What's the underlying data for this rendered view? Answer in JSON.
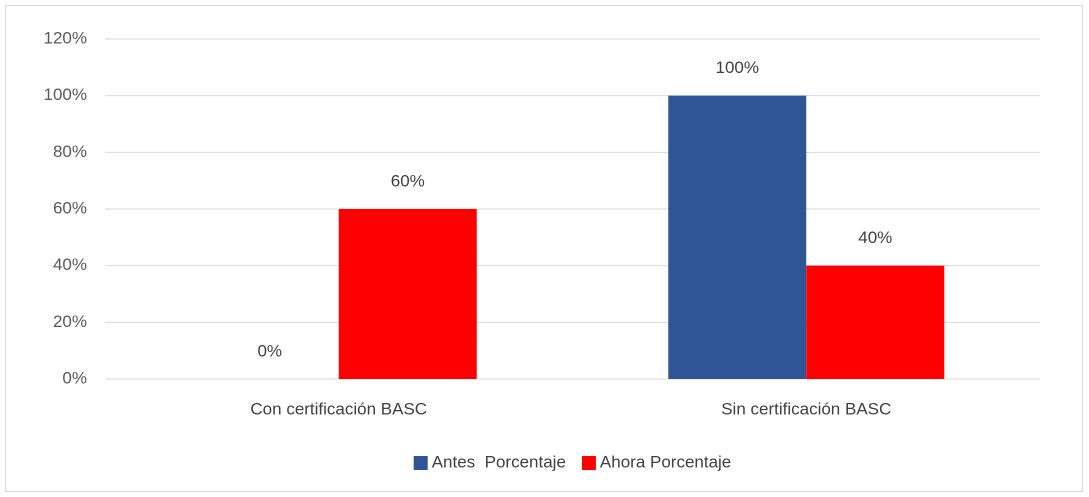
{
  "chart_data": {
    "type": "bar",
    "categories": [
      "Con certificación BASC",
      "Sin certificación BASC"
    ],
    "series": [
      {
        "name": "Antes  Porcentaje",
        "color": "#2f5597",
        "values": [
          0,
          100
        ],
        "value_labels": [
          "0%",
          "100%"
        ]
      },
      {
        "name": "Ahora Porcentaje",
        "color": "#ff0000",
        "values": [
          60,
          40
        ],
        "value_labels": [
          "60%",
          "40%"
        ]
      }
    ],
    "ylim": [
      0,
      120
    ],
    "yticks": [
      {
        "value": 0,
        "label": "0%"
      },
      {
        "value": 20,
        "label": "20%"
      },
      {
        "value": 40,
        "label": "40%"
      },
      {
        "value": 60,
        "label": "60%"
      },
      {
        "value": 80,
        "label": "80%"
      },
      {
        "value": 100,
        "label": "100%"
      },
      {
        "value": 120,
        "label": "120%"
      }
    ],
    "grid": true,
    "legend": "bottom"
  }
}
